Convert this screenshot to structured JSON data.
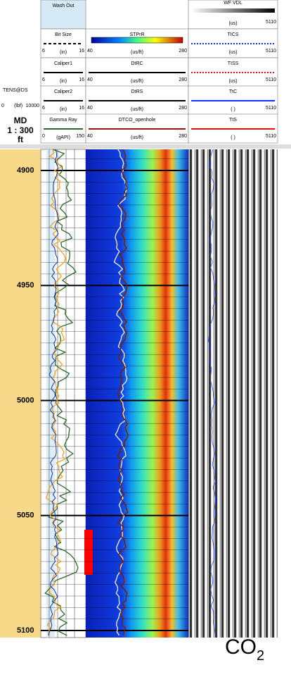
{
  "depth_track": {
    "tension_label": "TENS@DS",
    "tension_min": "0",
    "tension_unit": "(lbf)",
    "tension_max": "10000",
    "depth_label": "MD",
    "scale": "1 : 300",
    "depth_unit": "ft",
    "depths": [
      "4900",
      "4950",
      "5000",
      "5050",
      "5100"
    ]
  },
  "track1": {
    "headers": [
      {
        "name": "Wash Out"
      },
      {
        "name": "Bit Size",
        "min": "6",
        "unit": "(in)",
        "max": "16"
      },
      {
        "name": "Caliper1",
        "min": "6",
        "unit": "(in)",
        "max": "16"
      },
      {
        "name": "Caliper2",
        "min": "6",
        "unit": "(in)",
        "max": "16"
      },
      {
        "name": "Gamma Ray",
        "min": "0",
        "unit": "(gAPI)",
        "max": "150"
      }
    ]
  },
  "track2": {
    "headers": [
      {
        "name": "STPrR",
        "min": "40",
        "unit": "(us/ft)",
        "max": "280"
      },
      {
        "name": "DtRC",
        "min": "40",
        "unit": "(us/ft)",
        "max": "280"
      },
      {
        "name": "DtRS",
        "min": "40",
        "unit": "(us/ft)",
        "max": "280"
      },
      {
        "name": "DTCO_openhole",
        "min": "40",
        "unit": "(us/ft)",
        "max": "280"
      }
    ]
  },
  "track3": {
    "headers": [
      {
        "name": "WF VDL",
        "unit": "(us)",
        "max": "5110"
      },
      {
        "name": "TICS",
        "unit": "(us)",
        "max": "5110"
      },
      {
        "name": "TISS",
        "unit": "(us)",
        "max": "5110"
      },
      {
        "name": "TtC",
        "unit": "( )",
        "max": "5110"
      },
      {
        "name": "TtS",
        "unit": "( )",
        "max": "5110"
      }
    ]
  },
  "annotation": {
    "text": "CO",
    "subscript": "2"
  }
}
